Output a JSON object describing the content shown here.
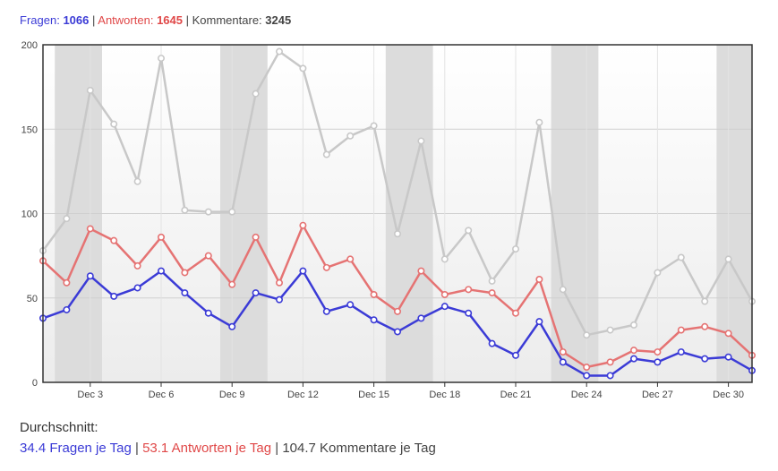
{
  "summary": {
    "questions_label": "Fragen:",
    "questions_total": "1066",
    "answers_label": "Antworten:",
    "answers_total": "1645",
    "comments_label": "Kommentare:",
    "comments_total": "3245",
    "separator": "|"
  },
  "average": {
    "heading": "Durchschnitt:",
    "questions": "34.4 Fragen je Tag",
    "answers": "53.1 Antworten je Tag",
    "comments": "104.7 Kommentare je Tag",
    "separator": "|"
  },
  "colors": {
    "questions": "#3b3bd6",
    "answers": "#e57373",
    "comments": "#c8c8c8",
    "weekend_band": "#dcdcdc"
  },
  "chart_data": {
    "type": "line",
    "title": "",
    "xlabel": "",
    "ylabel": "",
    "ylim": [
      0,
      200
    ],
    "yticks": [
      0,
      50,
      100,
      150,
      200
    ],
    "x_start_day": 1,
    "x_end_day": 31,
    "x_ticks": [
      {
        "day": 3,
        "label": "Dec 3"
      },
      {
        "day": 6,
        "label": "Dec 6"
      },
      {
        "day": 9,
        "label": "Dec 9"
      },
      {
        "day": 12,
        "label": "Dec 12"
      },
      {
        "day": 15,
        "label": "Dec 15"
      },
      {
        "day": 18,
        "label": "Dec 18"
      },
      {
        "day": 21,
        "label": "Dec 21"
      },
      {
        "day": 24,
        "label": "Dec 24"
      },
      {
        "day": 27,
        "label": "Dec 27"
      },
      {
        "day": 30,
        "label": "Dec 30"
      }
    ],
    "weekend_bands": [
      [
        2,
        3
      ],
      [
        9,
        10
      ],
      [
        16,
        17
      ],
      [
        23,
        24
      ],
      [
        30,
        31
      ]
    ],
    "grid": true,
    "legend": "none",
    "series": [
      {
        "key": "comments",
        "values": [
          78,
          97,
          173,
          153,
          119,
          192,
          102,
          101,
          101,
          171,
          196,
          186,
          135,
          146,
          152,
          88,
          143,
          73,
          90,
          60,
          79,
          154,
          55,
          28,
          31,
          34,
          65,
          74,
          48,
          73,
          48
        ]
      },
      {
        "key": "answers",
        "values": [
          72,
          59,
          91,
          84,
          69,
          86,
          65,
          75,
          58,
          86,
          59,
          93,
          68,
          73,
          52,
          42,
          66,
          52,
          55,
          53,
          41,
          61,
          18,
          9,
          12,
          19,
          18,
          31,
          33,
          29,
          16
        ]
      },
      {
        "key": "questions",
        "values": [
          38,
          43,
          63,
          51,
          56,
          66,
          53,
          41,
          33,
          53,
          49,
          66,
          42,
          46,
          37,
          30,
          38,
          45,
          41,
          23,
          16,
          36,
          12,
          4,
          4,
          14,
          12,
          18,
          14,
          15,
          7
        ]
      }
    ]
  }
}
